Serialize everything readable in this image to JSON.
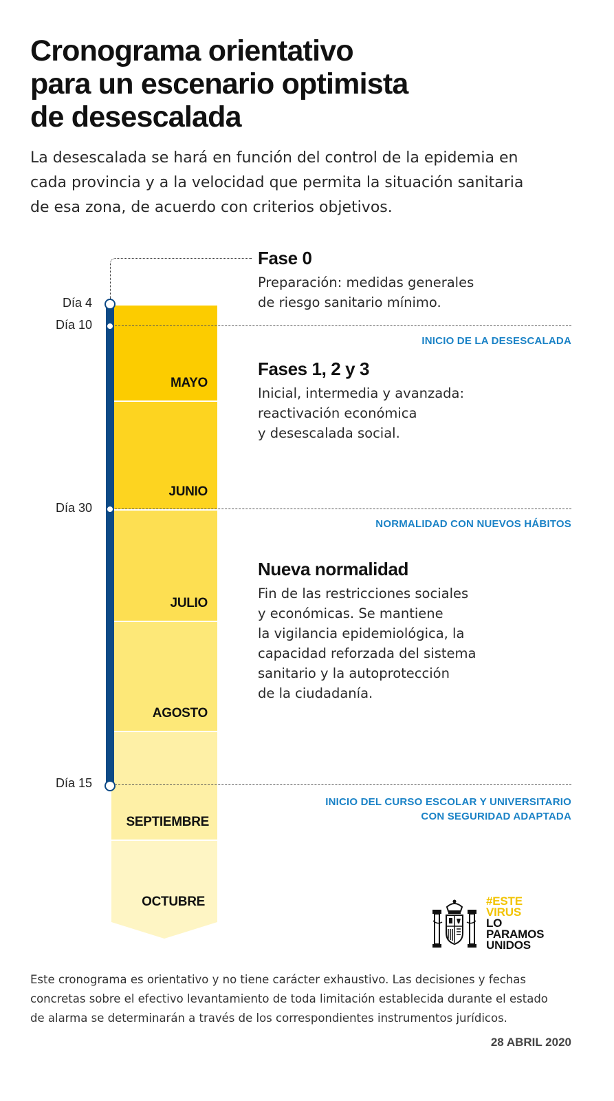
{
  "header": {
    "title_lines": [
      "Cronograma orientativo",
      "para un escenario optimista",
      "de desescalada"
    ],
    "intro_lines": [
      "La desescalada se hará en función del control de la epidemia en",
      "cada provincia y a la velocidad que permita la situación sanitaria",
      "de esa zona, de acuerdo con criterios objetivos."
    ]
  },
  "timeline": {
    "months": [
      "MAYO",
      "JUNIO",
      "JULIO",
      "AGOSTO",
      "SEPTIEMBRE",
      "OCTUBRE"
    ],
    "month_colors": [
      "#fccc00",
      "#fdd420",
      "#fddf52",
      "#fde878",
      "#fef0a6",
      "#fef5c4"
    ],
    "bar_color": "#0d4a86",
    "days": [
      "Día 4",
      "Día 10",
      "Día 30",
      "Día 15"
    ],
    "milestones": {
      "inicio": "INICIO DE LA DESESCALADA",
      "normalidad": "NORMALIDAD CON NUEVOS HÁBITOS",
      "curso_line1": "INICIO DEL CURSO ESCOLAR Y UNIVERSITARIO",
      "curso_line2": "CON SEGURIDAD ADAPTADA"
    },
    "milestone_color": "#1a82c6"
  },
  "phases": [
    {
      "title": "Fase 0",
      "lines": [
        "Preparación: medidas generales",
        "de riesgo sanitario mínimo."
      ]
    },
    {
      "title": "Fases 1, 2 y 3",
      "lines": [
        "Inicial, intermedia y avanzada:",
        "reactivación económica",
        "y desescalada social."
      ]
    },
    {
      "title": "Nueva normalidad",
      "lines": [
        "Fin de las restricciones sociales",
        "y económicas. Se mantiene",
        "la vigilancia epidemiológica, la",
        "capacidad reforzada del sistema",
        "sanitario y la autoprotección",
        "de la ciudadanía."
      ]
    }
  ],
  "logo": {
    "line1": "#ESTE",
    "line2": "VIRUS",
    "line3": "LO",
    "line4": "PARAMOS",
    "line5": "UNIDOS",
    "emblem_icon": "spain-coat-of-arms-icon"
  },
  "footer": {
    "lines": [
      "Este cronograma es orientativo y no tiene carácter exhaustivo. Las decisiones y fechas",
      "concretas sobre el efectivo levantamiento de toda limitación establecida durante el estado",
      "de alarma se determinarán a través de los correspondientes instrumentos jurídicos."
    ],
    "date": "28 ABRIL 2020"
  }
}
